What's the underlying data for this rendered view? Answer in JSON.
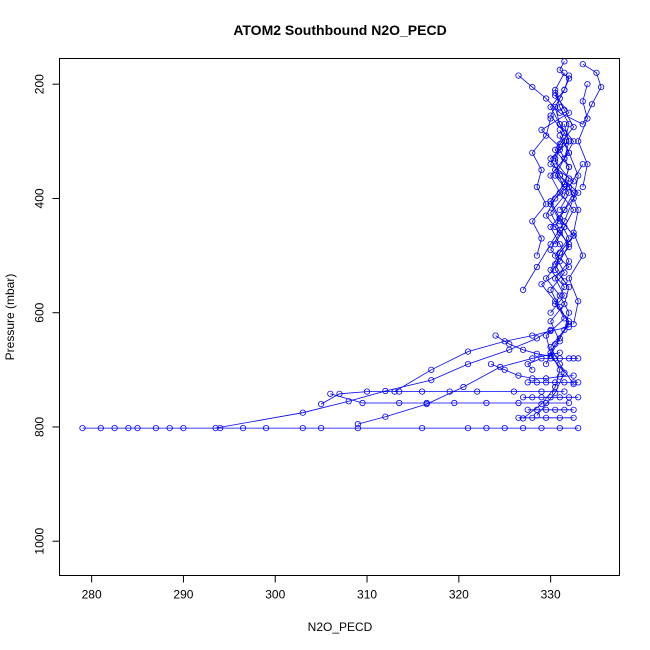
{
  "chart_data": {
    "type": "scatter",
    "title": "ATOM2 Southbound N2O_PECD",
    "xlabel": "N2O_PECD",
    "ylabel": "Pressure (mbar)",
    "xlim": [
      276.5,
      337.5
    ],
    "ylim": [
      1060,
      155
    ],
    "y_reversed": true,
    "x_ticks": [
      280,
      290,
      300,
      310,
      320,
      330
    ],
    "y_ticks": [
      200,
      400,
      600,
      800,
      1000
    ],
    "grid": false,
    "legend": "none",
    "marker": "open-circle",
    "connect_points": true,
    "series_color": "#0000ff",
    "series": [
      {
        "x": [
          279.0,
          281.0,
          282.5,
          284.0,
          285.0,
          287.0,
          288.5,
          290.0,
          294.0,
          296.5,
          299.0,
          303.0,
          305.0,
          309.0,
          316.0,
          321.0,
          323.0,
          325.0,
          327.0,
          329.0,
          331.0,
          333.0
        ],
        "y": [
          802,
          802,
          802,
          802,
          802,
          802,
          802,
          802,
          802,
          802,
          802,
          802,
          802,
          802,
          802,
          802,
          802,
          802,
          802,
          802,
          802,
          802
        ]
      },
      {
        "x": [
          293.5,
          303.0,
          308.0,
          312.0,
          317.0,
          321.0,
          325.5,
          328.5,
          330.0
        ],
        "y": [
          802,
          775,
          755,
          737,
          718,
          690,
          665,
          645,
          630
        ]
      },
      {
        "x": [
          305.0,
          307.0,
          310.0,
          313.5,
          316.0,
          319.0,
          322.0,
          326.0,
          329.0,
          331.5
        ],
        "y": [
          760,
          742,
          738,
          738,
          738,
          738,
          738,
          738,
          738,
          738
        ]
      },
      {
        "x": [
          306.0,
          309.5,
          313.5,
          316.5,
          319.5,
          323.0,
          326.5,
          329.5,
          332.0
        ],
        "y": [
          742,
          758,
          758,
          758,
          758,
          758,
          758,
          758,
          758
        ]
      },
      {
        "x": [
          309.0,
          312.0,
          316.5,
          320.5,
          324.5,
          328.0,
          331.0
        ],
        "y": [
          795,
          782,
          760,
          730,
          695,
          680,
          670
        ]
      },
      {
        "x": [
          313.0,
          317.0,
          321.0,
          325.0,
          328.0,
          330.0,
          332.0
        ],
        "y": [
          738,
          700,
          668,
          650,
          640,
          632,
          625
        ]
      },
      {
        "x": [
          327.0,
          329.0,
          330.5,
          331.0,
          330.0,
          329.5,
          331.5,
          330.5,
          329.0,
          332.0,
          330.0,
          331.0,
          329.5,
          330.5,
          332.5,
          330.0,
          331.0,
          329.0,
          332.0,
          330.5
        ],
        "y": [
          785,
          760,
          730,
          700,
          670,
          640,
          610,
          580,
          550,
          520,
          490,
          460,
          430,
          400,
          370,
          340,
          310,
          280,
          250,
          220
        ]
      },
      {
        "x": [
          328.5,
          330.5,
          331.5,
          330.0,
          331.0,
          332.0,
          330.5,
          331.5,
          330.0,
          331.0,
          332.5,
          331.0,
          330.0,
          331.5,
          332.0,
          331.0
        ],
        "y": [
          780,
          740,
          705,
          675,
          645,
          615,
          585,
          555,
          525,
          495,
          465,
          435,
          405,
          375,
          345,
          315
        ]
      },
      {
        "x": [
          332.5,
          331.0,
          330.0,
          331.5,
          332.0,
          331.0,
          329.5,
          331.0,
          332.0,
          330.5,
          331.5,
          333.0,
          331.0,
          330.0,
          332.0,
          331.5
        ],
        "y": [
          725,
          690,
          660,
          630,
          600,
          570,
          540,
          510,
          480,
          450,
          420,
          390,
          360,
          330,
          300,
          270
        ]
      },
      {
        "x": [
          329.5,
          330.5,
          332.0,
          331.0,
          330.0,
          331.5,
          330.5,
          332.0,
          331.0,
          330.0,
          331.5,
          330.5,
          332.0,
          331.0
        ],
        "y": [
          690,
          655,
          620,
          590,
          560,
          530,
          500,
          470,
          440,
          410,
          380,
          350,
          320,
          290
        ]
      },
      {
        "x": [
          331.0,
          330.0,
          331.5,
          332.0,
          330.5,
          331.0,
          332.5,
          331.0,
          330.0,
          331.5,
          332.0,
          330.5,
          331.5,
          330.0,
          331.0
        ],
        "y": [
          650,
          615,
          585,
          555,
          525,
          495,
          465,
          435,
          405,
          375,
          345,
          315,
          285,
          255,
          225
        ]
      },
      {
        "x": [
          330.0,
          331.5,
          330.5,
          332.0,
          331.0,
          330.0,
          331.5,
          332.5,
          331.0,
          330.5,
          331.5,
          332.0,
          331.0,
          330.5,
          331.5
        ],
        "y": [
          600,
          570,
          540,
          510,
          480,
          450,
          420,
          390,
          360,
          330,
          300,
          270,
          240,
          210,
          180
        ]
      },
      {
        "x": [
          331.5,
          330.5,
          332.0,
          331.0,
          330.0,
          331.5,
          332.0,
          330.5,
          331.0,
          332.5,
          331.5,
          330.5
        ],
        "y": [
          545,
          515,
          485,
          455,
          425,
          395,
          365,
          335,
          305,
          275,
          245,
          215
        ]
      },
      {
        "x": [
          330.5,
          331.5,
          332.5,
          331.0,
          330.0,
          331.5,
          332.0,
          331.0,
          330.5,
          331.5,
          332.0
        ],
        "y": [
          480,
          450,
          420,
          390,
          360,
          330,
          300,
          270,
          240,
          210,
          185
        ]
      },
      {
        "x": [
          331.0,
          332.0,
          330.5,
          331.5,
          332.5,
          331.0,
          330.0,
          331.5,
          332.0,
          331.0,
          331.5
        ],
        "y": [
          420,
          390,
          360,
          330,
          300,
          270,
          240,
          210,
          190,
          175,
          160
        ]
      },
      {
        "x": [
          326.5,
          328.0,
          329.5,
          331.0,
          333.5,
          334.5,
          335.5,
          335.0,
          333.5
        ],
        "y": [
          185,
          205,
          225,
          250,
          270,
          235,
          205,
          180,
          165
        ]
      },
      {
        "x": [
          327.0,
          328.5,
          330.0,
          331.5,
          332.5,
          333.0,
          332.0,
          331.0
        ],
        "y": [
          560,
          520,
          480,
          440,
          400,
          360,
          320,
          280
        ]
      },
      {
        "x": [
          328.0,
          327.5,
          329.0,
          330.5,
          332.0,
          333.0,
          332.5,
          331.0,
          330.0
        ],
        "y": [
          700,
          690,
          680,
          680,
          680,
          680,
          680,
          680,
          680
        ]
      },
      {
        "x": [
          327.5,
          328.5,
          329.5,
          330.5,
          331.5,
          332.5,
          333.0
        ],
        "y": [
          722,
          722,
          722,
          722,
          722,
          722,
          722
        ]
      },
      {
        "x": [
          327.0,
          328.0,
          329.0,
          330.0,
          331.0,
          332.0,
          333.0
        ],
        "y": [
          748,
          748,
          748,
          748,
          748,
          748,
          748
        ]
      },
      {
        "x": [
          327.5,
          328.5,
          329.5,
          330.5,
          331.5,
          332.5
        ],
        "y": [
          770,
          770,
          770,
          770,
          770,
          770
        ]
      },
      {
        "x": [
          326.5,
          328.0,
          329.5,
          331.0,
          332.5
        ],
        "y": [
          784,
          784,
          784,
          784,
          784
        ]
      },
      {
        "x": [
          323.5,
          325.0,
          326.5,
          328.0,
          329.5,
          331.0,
          332.5
        ],
        "y": [
          690,
          700,
          710,
          715,
          715,
          712,
          710
        ]
      },
      {
        "x": [
          324.0,
          325.5,
          327.0,
          328.5,
          330.0
        ],
        "y": [
          640,
          655,
          665,
          672,
          676
        ]
      },
      {
        "x": [
          328.5,
          329.0,
          328.0,
          329.5,
          328.5,
          329.0,
          328.0,
          329.5,
          330.0
        ],
        "y": [
          500,
          470,
          440,
          410,
          380,
          350,
          320,
          290,
          260
        ]
      },
      {
        "x": [
          332.5,
          333.0,
          332.0,
          333.5,
          332.5,
          333.0,
          332.0,
          333.5
        ],
        "y": [
          620,
          580,
          540,
          500,
          460,
          420,
          380,
          340
        ]
      },
      {
        "x": [
          334.0,
          333.5,
          334.0,
          333.0,
          334.0,
          333.5
        ],
        "y": [
          200,
          230,
          260,
          300,
          340,
          380
        ]
      }
    ]
  }
}
